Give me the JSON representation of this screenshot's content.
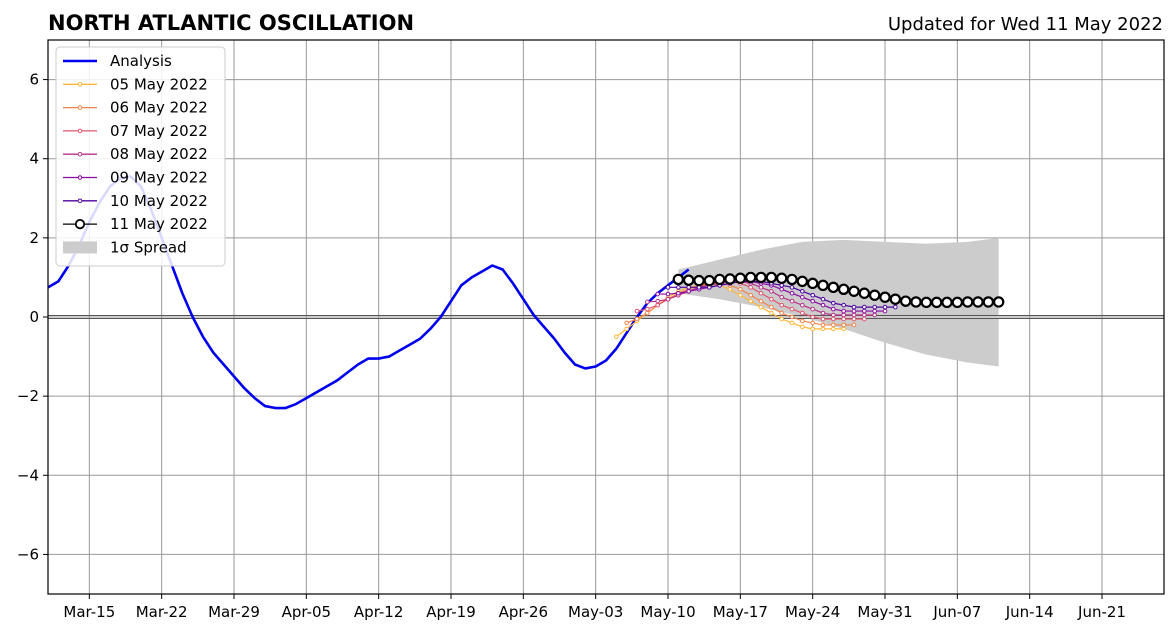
{
  "chart_data": {
    "type": "line",
    "title": "NORTH ATLANTIC OSCILLATION",
    "subtitle": "Updated for Wed 11 May 2022",
    "xlabel": "",
    "ylabel": "",
    "ylim": [
      -7,
      7
    ],
    "yticks": [
      -6,
      -4,
      -2,
      0,
      2,
      4,
      6
    ],
    "ytick_labels": [
      "−6",
      "−4",
      "−2",
      "0",
      "2",
      "4",
      "6"
    ],
    "xlim": [
      "2022-03-11",
      "2022-06-27"
    ],
    "xticks": [
      "2022-03-15",
      "2022-03-22",
      "2022-03-29",
      "2022-04-05",
      "2022-04-12",
      "2022-04-19",
      "2022-04-26",
      "2022-05-03",
      "2022-05-10",
      "2022-05-17",
      "2022-05-24",
      "2022-05-31",
      "2022-06-07",
      "2022-06-14",
      "2022-06-21"
    ],
    "xtick_labels": [
      "Mar-15",
      "Mar-22",
      "Mar-29",
      "Apr-05",
      "Apr-12",
      "Apr-19",
      "Apr-26",
      "May-03",
      "May-10",
      "May-17",
      "May-24",
      "May-31",
      "Jun-07",
      "Jun-14",
      "Jun-21"
    ],
    "grid": true,
    "legend_position": "top-left",
    "legend": [
      "Analysis",
      "05 May 2022",
      "06 May 2022",
      "07 May 2022",
      "08 May 2022",
      "09 May 2022",
      "10 May 2022",
      "11 May 2022",
      "1σ Spread"
    ],
    "analysis": {
      "name": "Analysis",
      "color": "#0000ee",
      "start": "2022-03-11",
      "values": [
        0.75,
        0.9,
        1.3,
        1.8,
        2.4,
        2.9,
        3.3,
        3.5,
        3.55,
        3.3,
        2.7,
        2.0,
        1.3,
        0.6,
        0.0,
        -0.5,
        -0.9,
        -1.2,
        -1.5,
        -1.8,
        -2.05,
        -2.25,
        -2.3,
        -2.3,
        -2.2,
        -2.05,
        -1.9,
        -1.75,
        -1.6,
        -1.4,
        -1.2,
        -1.05,
        -1.05,
        -1.0,
        -0.85,
        -0.7,
        -0.55,
        -0.3,
        0.0,
        0.4,
        0.8,
        1.0,
        1.15,
        1.3,
        1.2,
        0.85,
        0.45,
        0.05,
        -0.25,
        -0.55,
        -0.9,
        -1.2,
        -1.3,
        -1.25,
        -1.1,
        -0.8,
        -0.4,
        0.0,
        0.35,
        0.6,
        0.8,
        1.0,
        1.2
      ]
    },
    "spread": {
      "name": "1σ Spread",
      "color": "#cccccc",
      "x": [
        "2022-05-11",
        "2022-05-15",
        "2022-05-19",
        "2022-05-23",
        "2022-05-27",
        "2022-05-31",
        "2022-06-04",
        "2022-06-08",
        "2022-06-11"
      ],
      "upper": [
        1.2,
        1.45,
        1.7,
        1.9,
        1.95,
        1.9,
        1.85,
        1.9,
        2.0
      ],
      "lower": [
        0.6,
        0.45,
        0.25,
        0.0,
        -0.3,
        -0.65,
        -0.95,
        -1.15,
        -1.25
      ]
    },
    "forecasts": [
      {
        "name": "05 May 2022",
        "color": "#fdb63a",
        "start": "2022-05-05",
        "values": [
          -0.5,
          -0.3,
          -0.1,
          0.1,
          0.3,
          0.5,
          0.65,
          0.75,
          0.8,
          0.85,
          0.8,
          0.7,
          0.55,
          0.4,
          0.25,
          0.1,
          -0.05,
          -0.15,
          -0.25,
          -0.3,
          -0.3,
          -0.3,
          -0.3
        ]
      },
      {
        "name": "06 May 2022",
        "color": "#f2844b",
        "start": "2022-05-06",
        "values": [
          -0.15,
          -0.05,
          0.1,
          0.3,
          0.45,
          0.6,
          0.7,
          0.8,
          0.85,
          0.85,
          0.8,
          0.7,
          0.55,
          0.4,
          0.25,
          0.1,
          0.0,
          -0.1,
          -0.15,
          -0.2,
          -0.2,
          -0.2,
          -0.2
        ]
      },
      {
        "name": "07 May 2022",
        "color": "#e0556f",
        "start": "2022-05-07",
        "values": [
          0.15,
          0.2,
          0.3,
          0.45,
          0.55,
          0.65,
          0.75,
          0.85,
          0.9,
          0.9,
          0.85,
          0.75,
          0.6,
          0.45,
          0.3,
          0.2,
          0.1,
          0.0,
          -0.05,
          -0.05,
          -0.05,
          -0.05,
          -0.05
        ]
      },
      {
        "name": "08 May 2022",
        "color": "#b83289",
        "start": "2022-05-08",
        "values": [
          0.38,
          0.4,
          0.45,
          0.55,
          0.65,
          0.75,
          0.8,
          0.85,
          0.9,
          0.9,
          0.85,
          0.75,
          0.65,
          0.5,
          0.4,
          0.3,
          0.2,
          0.1,
          0.05,
          0.05,
          0.05,
          0.05,
          0.05
        ]
      },
      {
        "name": "09 May 2022",
        "color": "#8b0aa5",
        "start": "2022-05-09",
        "values": [
          0.58,
          0.58,
          0.6,
          0.65,
          0.7,
          0.75,
          0.8,
          0.85,
          0.9,
          0.9,
          0.85,
          0.8,
          0.7,
          0.6,
          0.5,
          0.4,
          0.3,
          0.2,
          0.15,
          0.15,
          0.15,
          0.15,
          0.15
        ]
      },
      {
        "name": "10 May 2022",
        "color": "#4b03a1",
        "start": "2022-05-10",
        "values": [
          0.75,
          0.75,
          0.75,
          0.75,
          0.75,
          0.8,
          0.85,
          0.9,
          0.9,
          0.9,
          0.85,
          0.8,
          0.75,
          0.65,
          0.55,
          0.45,
          0.35,
          0.3,
          0.25,
          0.25,
          0.25,
          0.25,
          0.25
        ]
      },
      {
        "name": "11 May 2022",
        "color": "#000000",
        "start": "2022-05-11",
        "values": [
          0.95,
          0.93,
          0.92,
          0.92,
          0.95,
          0.96,
          0.98,
          1.0,
          1.0,
          1.0,
          0.98,
          0.95,
          0.9,
          0.85,
          0.8,
          0.75,
          0.7,
          0.65,
          0.6,
          0.55,
          0.5,
          0.45,
          0.4,
          0.38,
          0.37,
          0.37,
          0.37,
          0.37,
          0.38,
          0.38,
          0.38,
          0.38
        ]
      }
    ]
  }
}
